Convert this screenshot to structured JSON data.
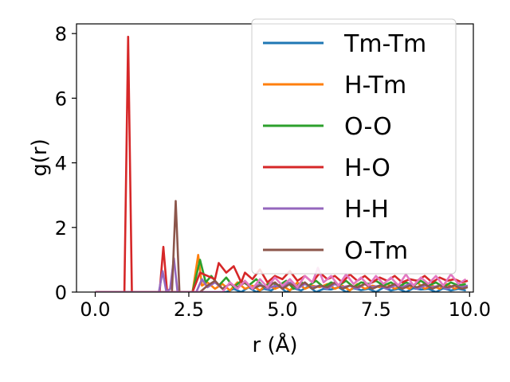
{
  "chart_data": {
    "type": "line",
    "xlabel": "r (Å)",
    "ylabel": "g(r)",
    "xlim": [
      -0.5,
      10.1
    ],
    "ylim": [
      0,
      8.3
    ],
    "xticks": [
      0.0,
      2.5,
      5.0,
      7.5,
      10.0
    ],
    "xtick_labels": [
      "0.0",
      "2.5",
      "5.0",
      "7.5",
      "10.0"
    ],
    "yticks": [
      0,
      2,
      4,
      6,
      8
    ],
    "ytick_labels": [
      "0",
      "2",
      "4",
      "6",
      "8"
    ],
    "legend_position": "top-right",
    "series": [
      {
        "name": "Tm-Tm",
        "color": "#1f77b4",
        "x": [
          0,
          3.5,
          3.7,
          3.9,
          4.1,
          4.3,
          4.5,
          4.7,
          4.9,
          5.1,
          5.3,
          5.5,
          5.7,
          5.9,
          6.1,
          6.3,
          6.5,
          6.7,
          6.9,
          7.1,
          7.3,
          7.5,
          7.7,
          7.9,
          8.1,
          8.3,
          8.5,
          8.7,
          8.9,
          9.1,
          9.3,
          9.5,
          9.7,
          9.9
        ],
        "y": [
          0,
          0,
          0.1,
          0,
          0.15,
          0,
          0.1,
          0.05,
          0.2,
          0,
          0.12,
          0.05,
          0.18,
          0,
          0.1,
          0.08,
          0.15,
          0,
          0.12,
          0.06,
          0.1,
          0,
          0.14,
          0.05,
          0.1,
          0,
          0.12,
          0.08,
          0.1,
          0,
          0.12,
          0.05,
          0.1,
          0.05
        ]
      },
      {
        "name": "H-Tm",
        "color": "#ff7f0e",
        "x": [
          0,
          2.6,
          2.75,
          2.85,
          3.0,
          3.2,
          3.4,
          3.6,
          3.8,
          4.0,
          4.2,
          4.4,
          4.6,
          4.8,
          5.0,
          5.2,
          5.4,
          5.6,
          5.8,
          6.0,
          6.2,
          6.4,
          6.6,
          6.8,
          7.0,
          7.2,
          7.4,
          7.6,
          7.8,
          8.0,
          8.2,
          8.4,
          8.6,
          8.8,
          9.0,
          9.2,
          9.4,
          9.6,
          9.8,
          9.9
        ],
        "y": [
          0,
          0,
          1.15,
          0.2,
          0.3,
          0.1,
          0.25,
          0.05,
          0.3,
          0.1,
          0.2,
          0.05,
          0.25,
          0.1,
          0.2,
          0.05,
          0.3,
          0.1,
          0.2,
          0.15,
          0.25,
          0.1,
          0.2,
          0.05,
          0.25,
          0.1,
          0.2,
          0.15,
          0.25,
          0.1,
          0.2,
          0.1,
          0.3,
          0.1,
          0.2,
          0.1,
          0.25,
          0.1,
          0.2,
          0.15
        ]
      },
      {
        "name": "O-O",
        "color": "#2ca02c",
        "x": [
          0,
          2.6,
          2.8,
          2.95,
          3.1,
          3.3,
          3.5,
          3.7,
          3.9,
          4.1,
          4.3,
          4.5,
          4.7,
          4.9,
          5.1,
          5.3,
          5.5,
          5.7,
          5.9,
          6.1,
          6.3,
          6.5,
          6.7,
          6.9,
          7.1,
          7.3,
          7.5,
          7.7,
          7.9,
          8.1,
          8.3,
          8.5,
          8.7,
          8.9,
          9.1,
          9.3,
          9.5,
          9.7,
          9.9
        ],
        "y": [
          0,
          0,
          1.0,
          0.3,
          0.5,
          0.2,
          0.45,
          0.15,
          0.35,
          0.2,
          0.4,
          0.15,
          0.3,
          0.2,
          0.35,
          0.1,
          0.3,
          0.2,
          0.35,
          0.15,
          0.3,
          0.2,
          0.35,
          0.15,
          0.3,
          0.25,
          0.35,
          0.2,
          0.3,
          0.15,
          0.3,
          0.2,
          0.35,
          0.2,
          0.3,
          0.15,
          0.3,
          0.2,
          0.25
        ]
      },
      {
        "name": "H-O",
        "color": "#d62728",
        "x": [
          0,
          0.78,
          0.88,
          0.98,
          1.72,
          1.82,
          1.92,
          2.6,
          2.8,
          3.0,
          3.2,
          3.3,
          3.5,
          3.7,
          3.9,
          4.0,
          4.2,
          4.4,
          4.6,
          4.8,
          5.0,
          5.2,
          5.4,
          5.6,
          5.8,
          6.0,
          6.2,
          6.4,
          6.6,
          6.8,
          7.0,
          7.2,
          7.4,
          7.6,
          7.8,
          8.0,
          8.2,
          8.4,
          8.6,
          8.8,
          9.0,
          9.2,
          9.4,
          9.6,
          9.8,
          9.95
        ],
        "y": [
          0,
          0,
          7.9,
          0,
          0,
          1.4,
          0,
          0,
          0.6,
          0.5,
          0.4,
          0.9,
          0.6,
          0.8,
          0.3,
          0.6,
          0.4,
          0.7,
          0.3,
          0.5,
          0.4,
          0.65,
          0.35,
          0.5,
          0.3,
          0.6,
          0.4,
          0.5,
          0.3,
          0.55,
          0.35,
          0.5,
          0.3,
          0.45,
          0.35,
          0.5,
          0.3,
          0.4,
          0.35,
          0.5,
          0.3,
          0.45,
          0.35,
          0.4,
          0.3,
          0.35
        ]
      },
      {
        "name": "H-H",
        "color": "#9467bd",
        "x": [
          0,
          1.7,
          1.8,
          1.9,
          2.0,
          2.1,
          2.2,
          2.7,
          2.85,
          3.0,
          3.2,
          3.4,
          3.6,
          3.8,
          4.0,
          4.2,
          4.4,
          4.6,
          4.8,
          5.0,
          5.2,
          5.4,
          5.6,
          5.8,
          6.0,
          6.2,
          6.4,
          6.6,
          6.8,
          7.0,
          7.2,
          7.4,
          7.6,
          7.8,
          8.0,
          8.2,
          8.4,
          8.6,
          8.8,
          9.0,
          9.2,
          9.4,
          9.6,
          9.8,
          9.95
        ],
        "y": [
          0,
          0,
          0.65,
          0,
          0.1,
          1.05,
          0,
          0,
          0.4,
          0.15,
          0.3,
          0.1,
          0.25,
          0.15,
          0.3,
          0.1,
          0.25,
          0.1,
          0.2,
          0.15,
          0.3,
          0.1,
          0.25,
          0.15,
          0.2,
          0.1,
          0.25,
          0.15,
          0.2,
          0.1,
          0.25,
          0.15,
          0.2,
          0.1,
          0.2,
          0.15,
          0.25,
          0.1,
          0.2,
          0.15,
          0.2,
          0.1,
          0.2,
          0.15,
          0.2
        ]
      },
      {
        "name": "O-Tm",
        "color": "#8c564b",
        "x": [
          0,
          2.05,
          2.15,
          2.25,
          2.8,
          3.0,
          3.2,
          3.4,
          3.6,
          3.8,
          4.0,
          4.2,
          4.4,
          4.6,
          4.8,
          5.0,
          5.2,
          5.4,
          5.6,
          5.8,
          6.0,
          6.2,
          6.4,
          6.6,
          6.8,
          7.0,
          7.2,
          7.4,
          7.6,
          7.8,
          8.0,
          8.2,
          8.4,
          8.6,
          8.8,
          9.0,
          9.2,
          9.4,
          9.6,
          9.8,
          9.95
        ],
        "y": [
          0,
          0,
          2.82,
          0,
          0,
          0.2,
          0.35,
          0.1,
          0.25,
          0.15,
          0.3,
          0.1,
          0.2,
          0.15,
          0.3,
          0.1,
          0.25,
          0.15,
          0.3,
          0.1,
          0.2,
          0.15,
          0.3,
          0.1,
          0.2,
          0.15,
          0.25,
          0.1,
          0.2,
          0.15,
          0.25,
          0.1,
          0.2,
          0.15,
          0.25,
          0.1,
          0.2,
          0.15,
          0.2,
          0.1,
          0.15
        ]
      },
      {
        "name": "",
        "color": "#e377c2",
        "x": [
          0,
          3.4,
          3.6,
          3.8,
          4.0,
          4.2,
          4.4,
          4.6,
          4.8,
          5.0,
          5.2,
          5.4,
          5.6,
          5.8,
          5.95,
          6.1,
          6.3,
          6.5,
          6.7,
          6.9,
          7.1,
          7.3,
          7.5,
          7.7,
          7.9,
          8.1,
          8.3,
          8.5,
          8.7,
          8.9,
          9.1,
          9.3,
          9.5,
          9.7,
          9.9
        ],
        "y": [
          0,
          0,
          0.3,
          0.1,
          0.35,
          0.1,
          0.4,
          0.15,
          0.45,
          0.2,
          0.4,
          0.15,
          0.5,
          0.3,
          0.75,
          0.3,
          0.5,
          0.2,
          0.55,
          0.25,
          0.45,
          0.2,
          0.5,
          0.25,
          0.45,
          0.2,
          0.55,
          0.2,
          0.45,
          0.25,
          0.5,
          0.2,
          0.55,
          0.25,
          0.4
        ]
      }
    ]
  }
}
